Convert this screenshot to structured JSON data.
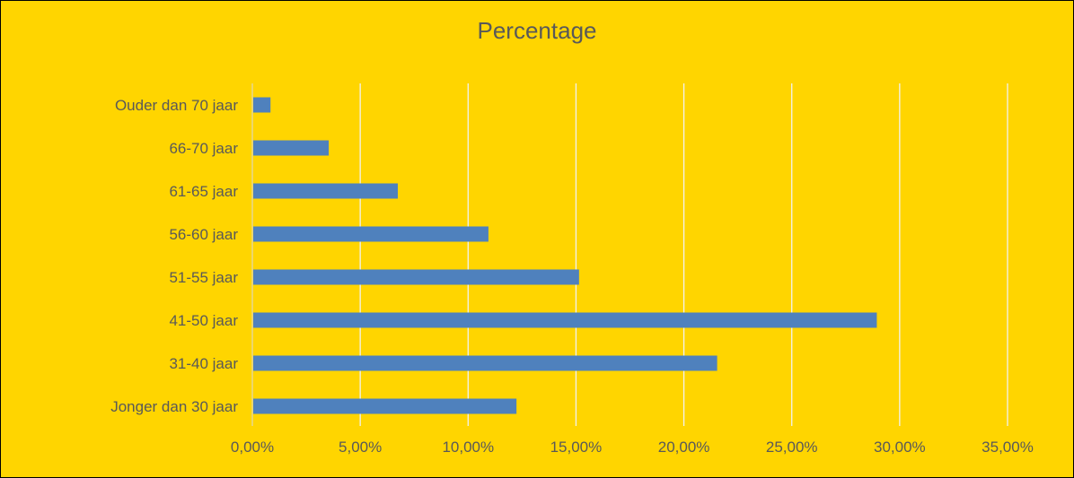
{
  "chart_data": {
    "type": "bar",
    "orientation": "horizontal",
    "title": "Percentage",
    "categories": [
      "Ouder dan 70 jaar",
      "66-70 jaar",
      "61-65 jaar",
      "56-60 jaar",
      "51-55 jaar",
      "41-50 jaar",
      "31-40 jaar",
      "Jonger dan 30 jaar"
    ],
    "values": [
      0.8,
      3.5,
      6.7,
      10.9,
      15.1,
      28.9,
      21.5,
      12.2
    ],
    "value_unit": "%",
    "xlim": [
      0,
      35
    ],
    "x_ticks": [
      0,
      5,
      10,
      15,
      20,
      25,
      30,
      35
    ],
    "x_tick_labels": [
      "0,00%",
      "5,00%",
      "10,00%",
      "15,00%",
      "20,00%",
      "25,00%",
      "30,00%",
      "35,00%"
    ],
    "xlabel": "",
    "ylabel": "",
    "grid": "vertical",
    "legend": "none",
    "colors": {
      "background": "#FFD500",
      "bar": "#4F81BD",
      "text": "#595959",
      "grid": "#F2F2F2"
    }
  }
}
